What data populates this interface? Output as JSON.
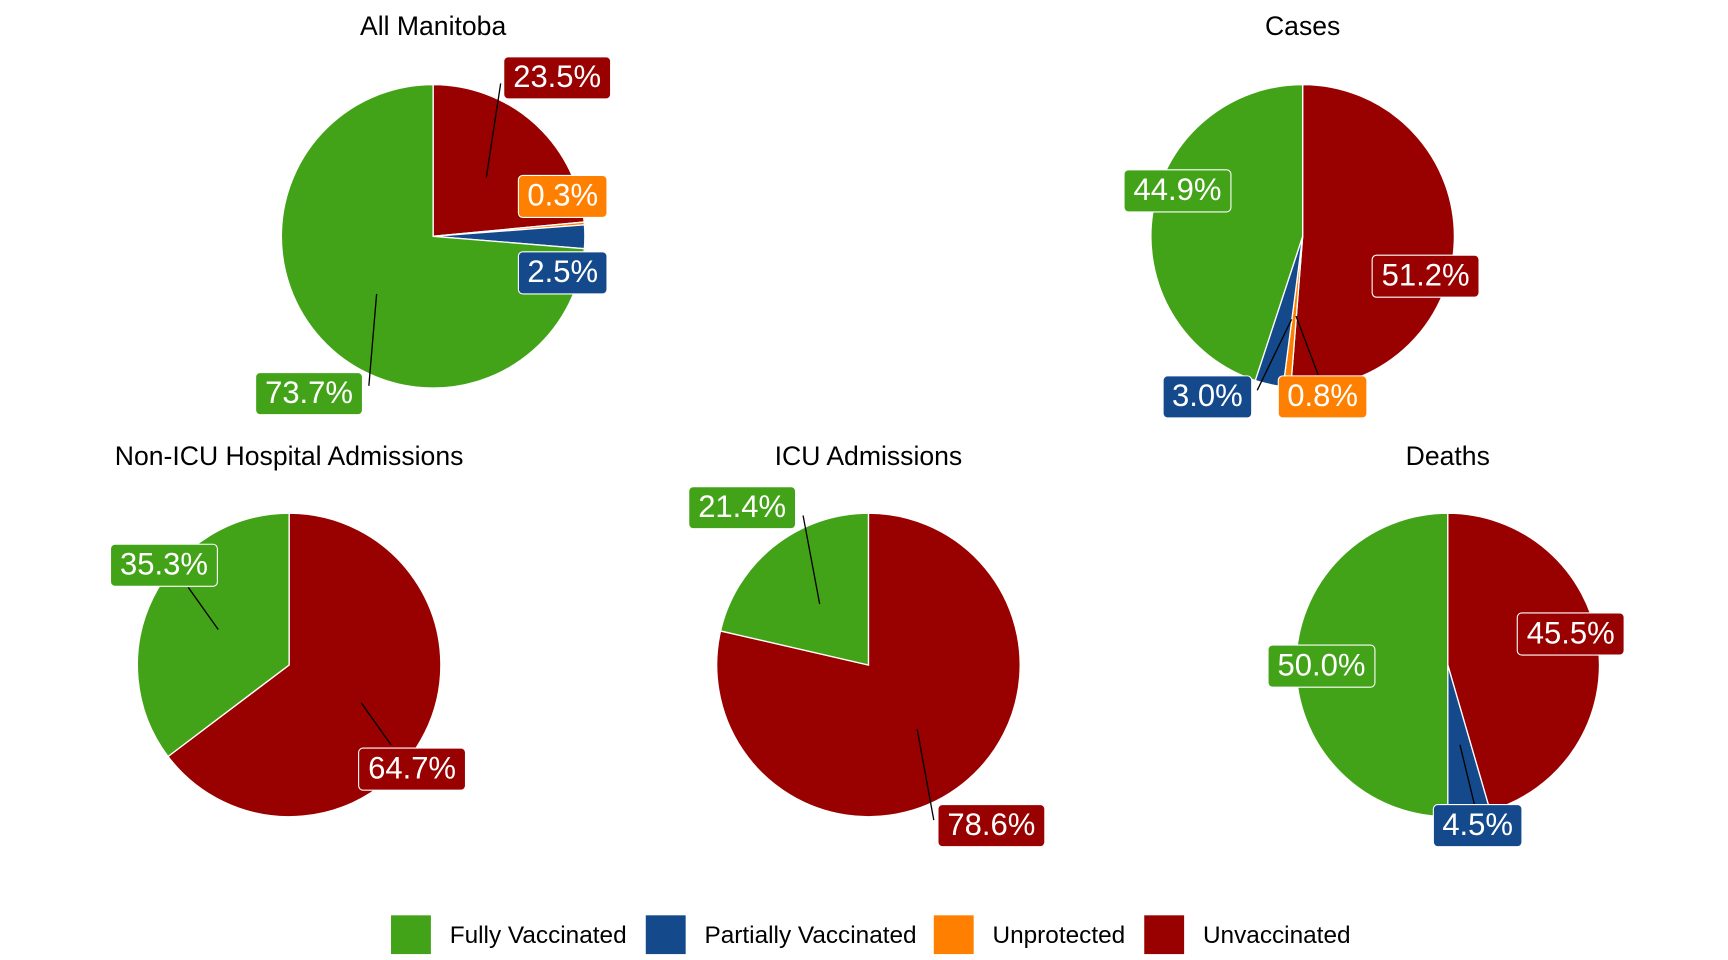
{
  "chart_data": [
    {
      "type": "pie",
      "title": "All Manitoba",
      "categories": [
        "Unvaccinated",
        "Unprotected",
        "Partially Vaccinated",
        "Fully Vaccinated"
      ],
      "values": [
        23.5,
        0.3,
        2.5,
        73.7
      ],
      "labels": [
        "23.5%",
        "0.3%",
        "2.5%",
        "73.7%"
      ]
    },
    {
      "type": "pie",
      "title": "Cases",
      "categories": [
        "Unvaccinated",
        "Unprotected",
        "Partially Vaccinated",
        "Fully Vaccinated"
      ],
      "values": [
        51.2,
        0.8,
        3.0,
        44.9
      ],
      "labels": [
        "51.2%",
        "0.8%",
        "3.0%",
        "44.9%"
      ]
    },
    {
      "type": "pie",
      "title": "Non-ICU Hospital Admissions",
      "categories": [
        "Unvaccinated",
        "Fully Vaccinated"
      ],
      "values": [
        64.7,
        35.3
      ],
      "labels": [
        "64.7%",
        "35.3%"
      ]
    },
    {
      "type": "pie",
      "title": "ICU Admissions",
      "categories": [
        "Unvaccinated",
        "Fully Vaccinated"
      ],
      "values": [
        78.6,
        21.4
      ],
      "labels": [
        "78.6%",
        "21.4%"
      ]
    },
    {
      "type": "pie",
      "title": "Deaths",
      "categories": [
        "Unvaccinated",
        "Partially Vaccinated",
        "Fully Vaccinated"
      ],
      "values": [
        45.5,
        4.5,
        50.0
      ],
      "labels": [
        "45.5%",
        "4.5%",
        "50.0%"
      ]
    }
  ],
  "legend": {
    "placement": "bottom",
    "items": [
      {
        "label": "Fully Vaccinated",
        "color": "#43a318"
      },
      {
        "label": "Partially Vaccinated",
        "color": "#144a8c"
      },
      {
        "label": "Unprotected",
        "color": "#ff8000"
      },
      {
        "label": "Unvaccinated",
        "color": "#990000"
      }
    ]
  }
}
